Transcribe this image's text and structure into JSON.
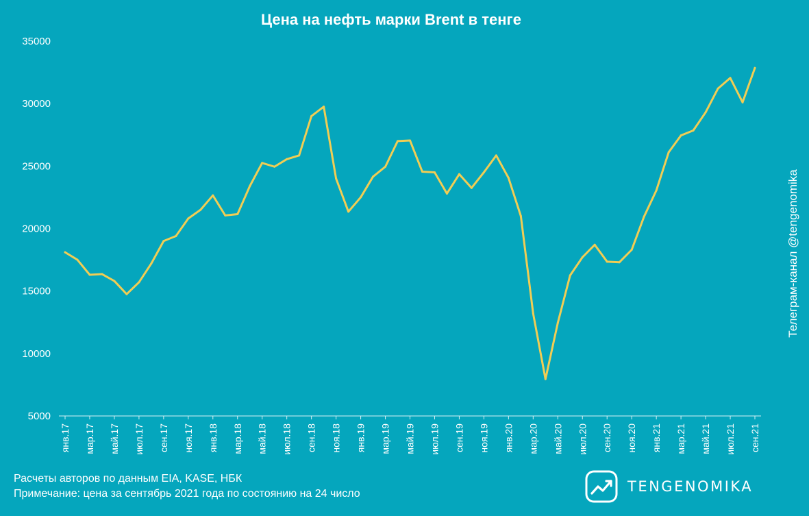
{
  "colors": {
    "background": "#05a6bd",
    "line": "#f1cd54",
    "text": "#ffffff",
    "axis": "#d8f1f5"
  },
  "side_label": "Телеграм-канал @tengenomika",
  "footer": {
    "source": "Расчеты авторов по данным EIA, KASE, НБК",
    "note": "Примечание: цена за сентябрь 2021 года по состоянию на 24 число"
  },
  "brand": {
    "name": "TENGENOMIKA",
    "icon": "chart-up-logo-icon"
  },
  "chart_data": {
    "type": "line",
    "title": "Цена на нефть марки Brent в тенге",
    "xlabel": "",
    "ylabel": "",
    "ylim": [
      5000,
      35000
    ],
    "yticks": [
      5000,
      10000,
      15000,
      20000,
      25000,
      30000,
      35000
    ],
    "grid": false,
    "legend": "none",
    "tick_labels": [
      "янв.17",
      "мар.17",
      "май.17",
      "июл.17",
      "сен.17",
      "ноя.17",
      "янв.18",
      "мар.18",
      "май.18",
      "июл.18",
      "сен.18",
      "ноя.18",
      "янв.19",
      "мар.19",
      "май.19",
      "июл.19",
      "сен.19",
      "ноя.19",
      "янв.20",
      "мар.20",
      "май.20",
      "июл.20",
      "сен.20",
      "ноя.20",
      "янв.21",
      "мар.21",
      "май.21",
      "июл.21",
      "сен.21"
    ],
    "x": [
      "янв.17",
      "фев.17",
      "мар.17",
      "апр.17",
      "май.17",
      "июн.17",
      "июл.17",
      "авг.17",
      "сен.17",
      "окт.17",
      "ноя.17",
      "дек.17",
      "янв.18",
      "фев.18",
      "мар.18",
      "апр.18",
      "май.18",
      "июн.18",
      "июл.18",
      "авг.18",
      "сен.18",
      "окт.18",
      "ноя.18",
      "дек.18",
      "янв.19",
      "фев.19",
      "мар.19",
      "апр.19",
      "май.19",
      "июн.19",
      "июл.19",
      "авг.19",
      "сен.19",
      "окт.19",
      "ноя.19",
      "дек.19",
      "янв.20",
      "фев.20",
      "мар.20",
      "апр.20",
      "май.20",
      "июн.20",
      "июл.20",
      "авг.20",
      "сен.20",
      "окт.20",
      "ноя.20",
      "дек.20",
      "янв.21",
      "фев.21",
      "мар.21",
      "апр.21",
      "май.21",
      "июн.21",
      "июл.21",
      "авг.21",
      "сен.21"
    ],
    "series": [
      {
        "values": [
          18100,
          17500,
          16300,
          16350,
          15800,
          14750,
          15700,
          17200,
          19000,
          19400,
          20800,
          21500,
          22650,
          21050,
          21150,
          23400,
          25250,
          24950,
          25550,
          25850,
          29000,
          29750,
          24000,
          21350,
          22500,
          24150,
          24950,
          27000,
          27050,
          24550,
          24500,
          22800,
          24350,
          23250,
          24500,
          25850,
          24050,
          21000,
          13200,
          7950,
          12450,
          16250,
          17700,
          18700,
          17350,
          17300,
          18300,
          20950,
          23050,
          26100,
          27450,
          27850,
          29300,
          31200,
          32050,
          30100,
          32850
        ]
      }
    ]
  }
}
